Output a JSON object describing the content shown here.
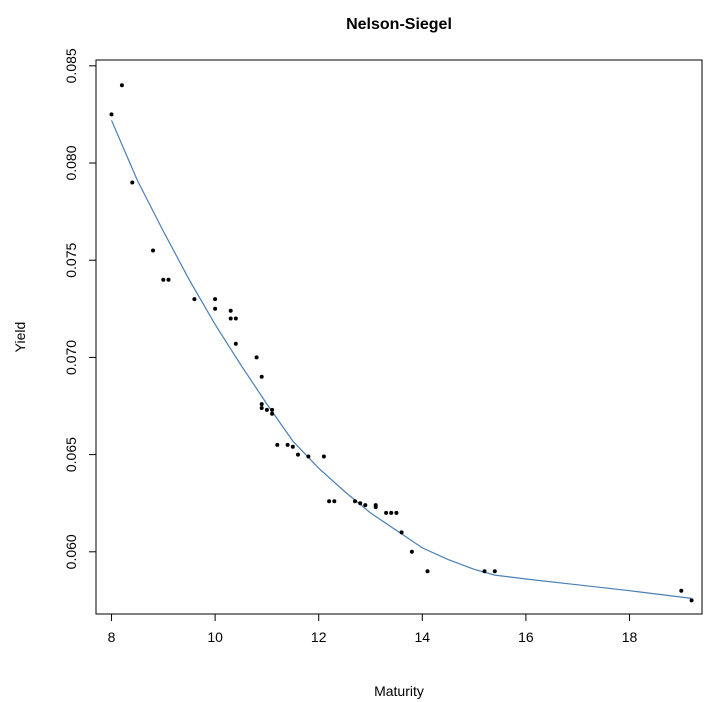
{
  "chart_data": {
    "type": "scatter",
    "title": "Nelson-Siegel",
    "xlabel": "Maturity",
    "ylabel": "Yield",
    "xlim": [
      7.7,
      19.4
    ],
    "ylim": [
      0.0568,
      0.0853
    ],
    "x_ticks": [
      "8",
      "10",
      "12",
      "14",
      "16",
      "18"
    ],
    "y_ticks": [
      "0.060",
      "0.065",
      "0.070",
      "0.075",
      "0.080",
      "0.085"
    ],
    "grid": false,
    "colors": {
      "points": "#000000",
      "fit_line": "#4a7fb5"
    },
    "series": [
      {
        "type": "scatter",
        "x": [
          8.0,
          8.2,
          8.4,
          8.8,
          9.0,
          9.1,
          9.6,
          10.0,
          10.0,
          10.3,
          10.3,
          10.4,
          10.4,
          10.8,
          10.9,
          10.9,
          10.9,
          11.0,
          11.1,
          11.1,
          11.2,
          11.4,
          11.5,
          11.6,
          11.8,
          12.1,
          12.2,
          12.3,
          12.7,
          12.8,
          12.9,
          13.1,
          13.1,
          13.3,
          13.4,
          13.5,
          13.6,
          13.8,
          14.1,
          15.2,
          15.4,
          19.0,
          19.2
        ],
        "y": [
          0.0825,
          0.084,
          0.079,
          0.0755,
          0.074,
          0.074,
          0.073,
          0.073,
          0.0725,
          0.0724,
          0.072,
          0.072,
          0.0707,
          0.07,
          0.069,
          0.0676,
          0.0674,
          0.0673,
          0.0673,
          0.0671,
          0.0655,
          0.0655,
          0.0654,
          0.065,
          0.0649,
          0.0649,
          0.0626,
          0.0626,
          0.0626,
          0.0625,
          0.0624,
          0.0624,
          0.0623,
          0.062,
          0.062,
          0.062,
          0.061,
          0.06,
          0.059,
          0.059,
          0.059,
          0.058,
          0.0575
        ]
      },
      {
        "type": "line",
        "x": [
          8.0,
          8.5,
          9.0,
          9.5,
          10.0,
          10.5,
          11.0,
          11.5,
          12.0,
          12.5,
          13.0,
          13.5,
          14.0,
          14.5,
          15.0,
          15.4,
          16.0,
          17.0,
          18.0,
          19.2
        ],
        "y": [
          0.0822,
          0.0791,
          0.0765,
          0.074,
          0.0717,
          0.0696,
          0.0676,
          0.0657,
          0.0643,
          0.0631,
          0.062,
          0.0611,
          0.0602,
          0.0596,
          0.0591,
          0.0588,
          0.0586,
          0.0583,
          0.058,
          0.0576
        ]
      }
    ]
  }
}
